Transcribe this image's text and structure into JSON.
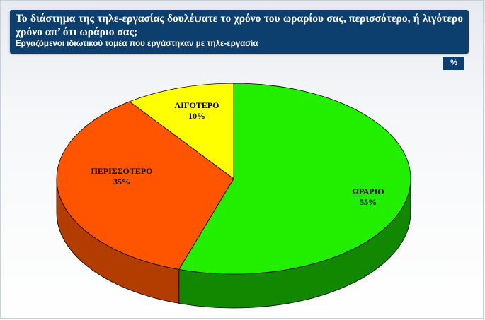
{
  "header": {
    "title": "Το διάστημα της τηλε-εργασίας δουλέψατε το χρόνο του ωραρίου σας, περισσότερο, ή λιγότερο χρόνο απ’ ότι ωράριο σας;",
    "subtitle": "Εργαζόμενοι ιδιωτικού τομέα που εργάστηκαν με τηλε-εργασία"
  },
  "unit_badge": "%",
  "chart_data": {
    "type": "pie",
    "title": "",
    "slices": [
      {
        "label": "ΩΡΑΡΙΟ",
        "value": 55,
        "value_text": "55%",
        "color": "#22ee00",
        "side_color": "#118800"
      },
      {
        "label": "ΠΕΡΙΣΣΟΤΕΡΟ",
        "value": 35,
        "value_text": "35%",
        "color": "#ff5500",
        "side_color": "#b33c00"
      },
      {
        "label": "ΛΙΓΟΤΕΡΟ",
        "value": 10,
        "value_text": "10%",
        "color": "#ffff00",
        "side_color": "#b3b300"
      }
    ],
    "legend": "none",
    "style": "3d-pie"
  }
}
